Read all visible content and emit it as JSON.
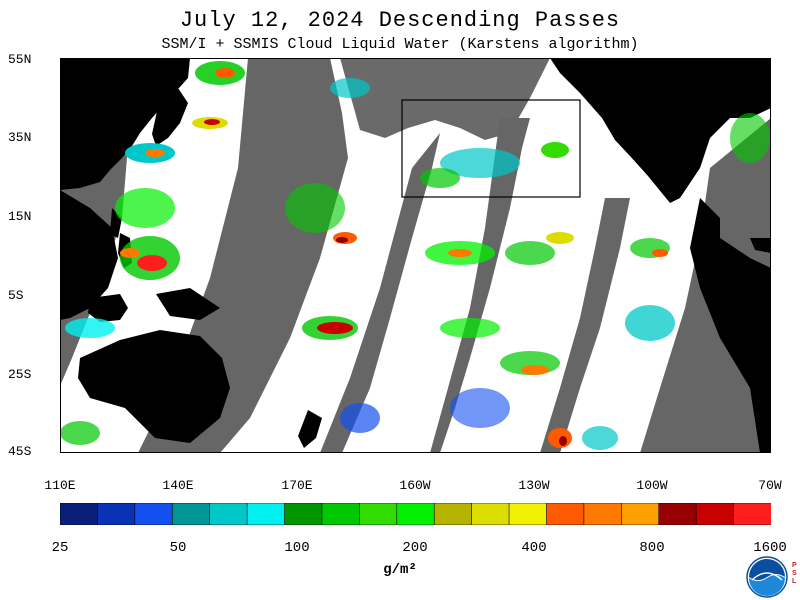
{
  "title": "July 12, 2024  Descending Passes",
  "subtitle": "SSM/I + SSMIS Cloud Liquid Water (Karstens algorithm)",
  "lat_labels": [
    "55N",
    "35N",
    "15N",
    "5S",
    "25S",
    "45S"
  ],
  "lon_labels": [
    "110E",
    "140E",
    "170E",
    "160W",
    "130W",
    "100W",
    "70W"
  ],
  "colorbar": {
    "colors": [
      "#0a1f7a",
      "#0a32b4",
      "#1450f0",
      "#009696",
      "#00c8c8",
      "#00f0f0",
      "#009600",
      "#00c800",
      "#32dc00",
      "#00f000",
      "#b4b400",
      "#dcdc00",
      "#f0f000",
      "#ff5a00",
      "#ff7800",
      "#ffa000",
      "#960000",
      "#c80000",
      "#ff1e1e"
    ],
    "tick_labels": [
      "25",
      "50",
      "100",
      "200",
      "400",
      "800",
      "1600"
    ]
  },
  "units": "g/m²",
  "colors": {
    "ocean_clear": "#ffffff",
    "land": "#000000",
    "no_data_swath_gap": "#666666"
  },
  "map": {
    "lon_range": [
      "110E",
      "70W"
    ],
    "lat_range": [
      "45S",
      "55N"
    ],
    "highlight_box": true
  }
}
